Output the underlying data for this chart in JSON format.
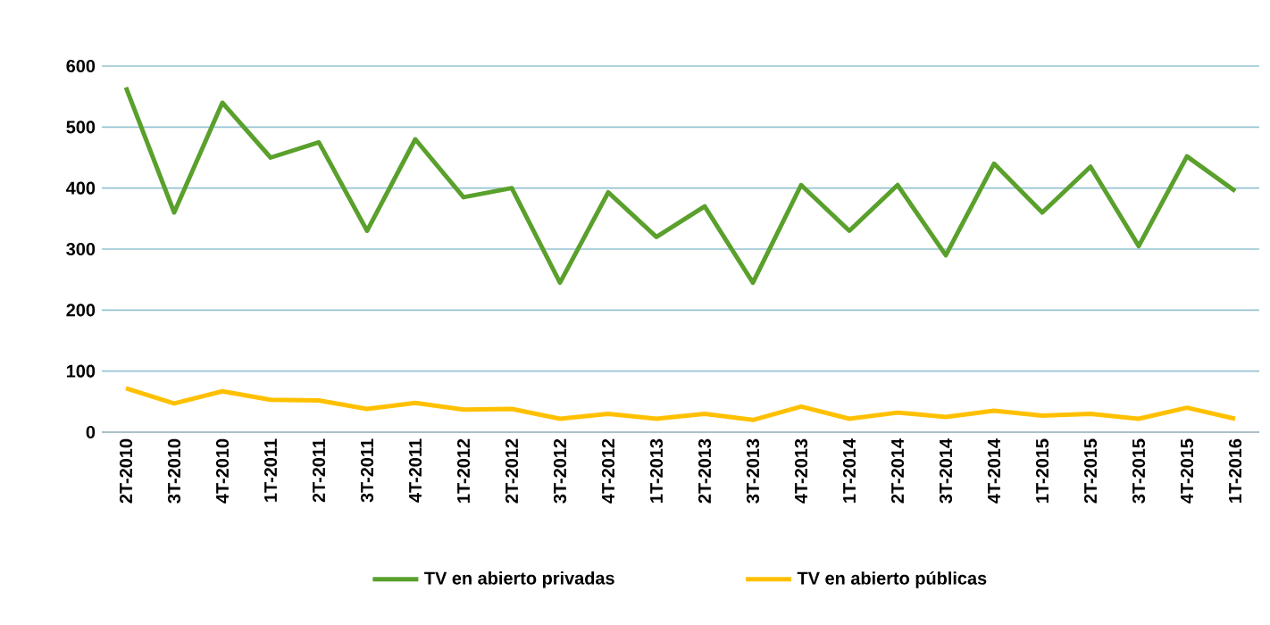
{
  "chart_data": {
    "type": "line",
    "categories": [
      "2T-2010",
      "3T-2010",
      "4T-2010",
      "1T-2011",
      "2T-2011",
      "3T-2011",
      "4T-2011",
      "1T-2012",
      "2T-2012",
      "3T-2012",
      "4T-2012",
      "1T-2013",
      "2T-2013",
      "3T-2013",
      "4T-2013",
      "1T-2014",
      "2T-2014",
      "3T-2014",
      "4T-2014",
      "1T-2015",
      "2T-2015",
      "3T-2015",
      "4T-2015",
      "1T-2016"
    ],
    "series": [
      {
        "name": "TV en abierto privadas",
        "color": "#5aa02c",
        "values": [
          565,
          360,
          540,
          450,
          475,
          330,
          480,
          385,
          400,
          245,
          393,
          320,
          370,
          245,
          405,
          330,
          405,
          290,
          440,
          360,
          435,
          305,
          452,
          395
        ]
      },
      {
        "name": "TV en abierto públicas",
        "color": "#ffc000",
        "values": [
          72,
          47,
          67,
          53,
          52,
          38,
          48,
          37,
          38,
          22,
          30,
          22,
          30,
          20,
          42,
          22,
          32,
          25,
          35,
          27,
          30,
          22,
          40,
          22
        ]
      }
    ],
    "ylim": [
      0,
      600
    ],
    "yticks": [
      0,
      100,
      200,
      300,
      400,
      500,
      600
    ],
    "grid": "y",
    "legend": "bottom",
    "marker": "none",
    "line_style": "solid"
  }
}
